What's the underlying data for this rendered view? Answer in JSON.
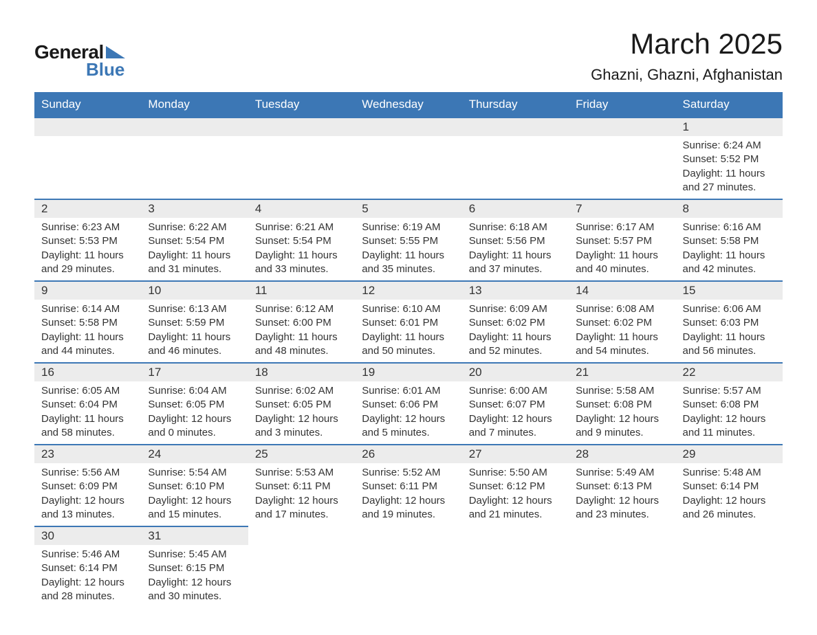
{
  "logo": {
    "general": "General",
    "blue": "Blue",
    "triangle_color": "#3c77b5"
  },
  "title": "March 2025",
  "location": "Ghazni, Ghazni, Afghanistan",
  "colors": {
    "header_bg": "#3c77b5",
    "header_text": "#ffffff",
    "daynum_bg": "#ececec",
    "border": "#3c77b5",
    "text": "#333333",
    "page_bg": "#ffffff"
  },
  "typography": {
    "title_fontsize": 42,
    "location_fontsize": 22,
    "header_fontsize": 17,
    "daynum_fontsize": 17,
    "body_fontsize": 15
  },
  "weekdays": [
    "Sunday",
    "Monday",
    "Tuesday",
    "Wednesday",
    "Thursday",
    "Friday",
    "Saturday"
  ],
  "weeks": [
    [
      null,
      null,
      null,
      null,
      null,
      null,
      {
        "n": "1",
        "sunrise": "Sunrise: 6:24 AM",
        "sunset": "Sunset: 5:52 PM",
        "daylight": "Daylight: 11 hours and 27 minutes."
      }
    ],
    [
      {
        "n": "2",
        "sunrise": "Sunrise: 6:23 AM",
        "sunset": "Sunset: 5:53 PM",
        "daylight": "Daylight: 11 hours and 29 minutes."
      },
      {
        "n": "3",
        "sunrise": "Sunrise: 6:22 AM",
        "sunset": "Sunset: 5:54 PM",
        "daylight": "Daylight: 11 hours and 31 minutes."
      },
      {
        "n": "4",
        "sunrise": "Sunrise: 6:21 AM",
        "sunset": "Sunset: 5:54 PM",
        "daylight": "Daylight: 11 hours and 33 minutes."
      },
      {
        "n": "5",
        "sunrise": "Sunrise: 6:19 AM",
        "sunset": "Sunset: 5:55 PM",
        "daylight": "Daylight: 11 hours and 35 minutes."
      },
      {
        "n": "6",
        "sunrise": "Sunrise: 6:18 AM",
        "sunset": "Sunset: 5:56 PM",
        "daylight": "Daylight: 11 hours and 37 minutes."
      },
      {
        "n": "7",
        "sunrise": "Sunrise: 6:17 AM",
        "sunset": "Sunset: 5:57 PM",
        "daylight": "Daylight: 11 hours and 40 minutes."
      },
      {
        "n": "8",
        "sunrise": "Sunrise: 6:16 AM",
        "sunset": "Sunset: 5:58 PM",
        "daylight": "Daylight: 11 hours and 42 minutes."
      }
    ],
    [
      {
        "n": "9",
        "sunrise": "Sunrise: 6:14 AM",
        "sunset": "Sunset: 5:58 PM",
        "daylight": "Daylight: 11 hours and 44 minutes."
      },
      {
        "n": "10",
        "sunrise": "Sunrise: 6:13 AM",
        "sunset": "Sunset: 5:59 PM",
        "daylight": "Daylight: 11 hours and 46 minutes."
      },
      {
        "n": "11",
        "sunrise": "Sunrise: 6:12 AM",
        "sunset": "Sunset: 6:00 PM",
        "daylight": "Daylight: 11 hours and 48 minutes."
      },
      {
        "n": "12",
        "sunrise": "Sunrise: 6:10 AM",
        "sunset": "Sunset: 6:01 PM",
        "daylight": "Daylight: 11 hours and 50 minutes."
      },
      {
        "n": "13",
        "sunrise": "Sunrise: 6:09 AM",
        "sunset": "Sunset: 6:02 PM",
        "daylight": "Daylight: 11 hours and 52 minutes."
      },
      {
        "n": "14",
        "sunrise": "Sunrise: 6:08 AM",
        "sunset": "Sunset: 6:02 PM",
        "daylight": "Daylight: 11 hours and 54 minutes."
      },
      {
        "n": "15",
        "sunrise": "Sunrise: 6:06 AM",
        "sunset": "Sunset: 6:03 PM",
        "daylight": "Daylight: 11 hours and 56 minutes."
      }
    ],
    [
      {
        "n": "16",
        "sunrise": "Sunrise: 6:05 AM",
        "sunset": "Sunset: 6:04 PM",
        "daylight": "Daylight: 11 hours and 58 minutes."
      },
      {
        "n": "17",
        "sunrise": "Sunrise: 6:04 AM",
        "sunset": "Sunset: 6:05 PM",
        "daylight": "Daylight: 12 hours and 0 minutes."
      },
      {
        "n": "18",
        "sunrise": "Sunrise: 6:02 AM",
        "sunset": "Sunset: 6:05 PM",
        "daylight": "Daylight: 12 hours and 3 minutes."
      },
      {
        "n": "19",
        "sunrise": "Sunrise: 6:01 AM",
        "sunset": "Sunset: 6:06 PM",
        "daylight": "Daylight: 12 hours and 5 minutes."
      },
      {
        "n": "20",
        "sunrise": "Sunrise: 6:00 AM",
        "sunset": "Sunset: 6:07 PM",
        "daylight": "Daylight: 12 hours and 7 minutes."
      },
      {
        "n": "21",
        "sunrise": "Sunrise: 5:58 AM",
        "sunset": "Sunset: 6:08 PM",
        "daylight": "Daylight: 12 hours and 9 minutes."
      },
      {
        "n": "22",
        "sunrise": "Sunrise: 5:57 AM",
        "sunset": "Sunset: 6:08 PM",
        "daylight": "Daylight: 12 hours and 11 minutes."
      }
    ],
    [
      {
        "n": "23",
        "sunrise": "Sunrise: 5:56 AM",
        "sunset": "Sunset: 6:09 PM",
        "daylight": "Daylight: 12 hours and 13 minutes."
      },
      {
        "n": "24",
        "sunrise": "Sunrise: 5:54 AM",
        "sunset": "Sunset: 6:10 PM",
        "daylight": "Daylight: 12 hours and 15 minutes."
      },
      {
        "n": "25",
        "sunrise": "Sunrise: 5:53 AM",
        "sunset": "Sunset: 6:11 PM",
        "daylight": "Daylight: 12 hours and 17 minutes."
      },
      {
        "n": "26",
        "sunrise": "Sunrise: 5:52 AM",
        "sunset": "Sunset: 6:11 PM",
        "daylight": "Daylight: 12 hours and 19 minutes."
      },
      {
        "n": "27",
        "sunrise": "Sunrise: 5:50 AM",
        "sunset": "Sunset: 6:12 PM",
        "daylight": "Daylight: 12 hours and 21 minutes."
      },
      {
        "n": "28",
        "sunrise": "Sunrise: 5:49 AM",
        "sunset": "Sunset: 6:13 PM",
        "daylight": "Daylight: 12 hours and 23 minutes."
      },
      {
        "n": "29",
        "sunrise": "Sunrise: 5:48 AM",
        "sunset": "Sunset: 6:14 PM",
        "daylight": "Daylight: 12 hours and 26 minutes."
      }
    ],
    [
      {
        "n": "30",
        "sunrise": "Sunrise: 5:46 AM",
        "sunset": "Sunset: 6:14 PM",
        "daylight": "Daylight: 12 hours and 28 minutes."
      },
      {
        "n": "31",
        "sunrise": "Sunrise: 5:45 AM",
        "sunset": "Sunset: 6:15 PM",
        "daylight": "Daylight: 12 hours and 30 minutes."
      },
      null,
      null,
      null,
      null,
      null
    ]
  ]
}
